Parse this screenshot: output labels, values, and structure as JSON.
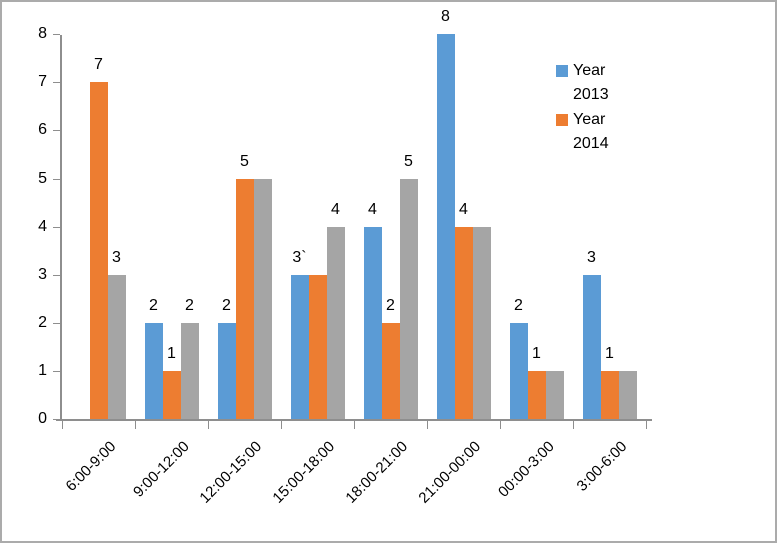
{
  "chart_data": {
    "type": "bar",
    "title": "",
    "xlabel": "",
    "ylabel": "",
    "categories": [
      "6:00-9:00",
      "9:00-12:00",
      "12:00-15:00",
      "15:00-18:00",
      "18:00-21:00",
      "21:00-00:00",
      "00:00-3:00",
      "3:00-6:00"
    ],
    "series": [
      {
        "name": "Year 2013",
        "color": "#5b9bd5",
        "values": [
          null,
          2,
          2,
          3,
          4,
          8,
          2,
          3
        ],
        "labels": [
          "",
          "2",
          "2",
          "3`",
          "4",
          "8",
          "2",
          "3"
        ]
      },
      {
        "name": "Year 2014",
        "color": "#ed7d31",
        "values": [
          7,
          1,
          5,
          3,
          2,
          4,
          1,
          1
        ],
        "labels": [
          "7",
          "1",
          "5",
          "",
          "2",
          "4",
          "1",
          "1"
        ]
      },
      {
        "name": "",
        "color": "#a5a5a5",
        "values": [
          3,
          2,
          5,
          4,
          5,
          4,
          1,
          1
        ],
        "labels": [
          "3",
          "2",
          "",
          "4",
          "5",
          "",
          "",
          ""
        ]
      }
    ],
    "ylim": [
      0,
      8
    ],
    "yticks": [
      0,
      1,
      2,
      3,
      4,
      5,
      6,
      7,
      8
    ],
    "grid": false,
    "legend_position": "right-top",
    "legend": [
      {
        "label": "Year 2013",
        "color": "#5b9bd5"
      },
      {
        "label": "Year 2014",
        "color": "#ed7d31"
      }
    ],
    "axis_color": "#8e8e8e"
  }
}
